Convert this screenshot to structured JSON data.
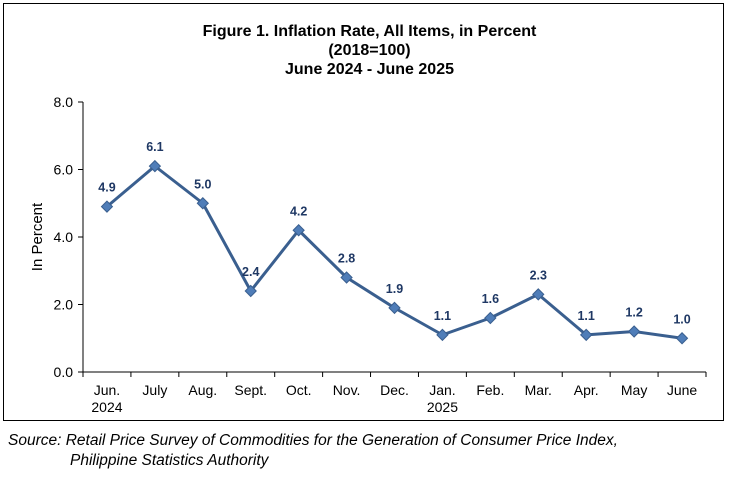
{
  "chart_data": {
    "type": "line",
    "title_lines": [
      "Figure 1. Inflation Rate, All Items, in Percent",
      "(2018=100)",
      "June 2024 - June 2025"
    ],
    "ylabel": "In Percent",
    "ylim": [
      0,
      8
    ],
    "yticks": [
      "0.0",
      "2.0",
      "4.0",
      "6.0",
      "8.0"
    ],
    "ytick_values": [
      0,
      2,
      4,
      6,
      8
    ],
    "categories": [
      [
        "Jun.",
        "2024"
      ],
      [
        "July"
      ],
      [
        "Aug."
      ],
      [
        "Sept."
      ],
      [
        "Oct."
      ],
      [
        "Nov."
      ],
      [
        "Dec."
      ],
      [
        "Jan.",
        "2025"
      ],
      [
        "Feb."
      ],
      [
        "Mar."
      ],
      [
        "Apr."
      ],
      [
        "May"
      ],
      [
        "June"
      ]
    ],
    "values": [
      4.9,
      6.1,
      5.0,
      2.4,
      4.2,
      2.8,
      1.9,
      1.1,
      1.6,
      2.3,
      1.1,
      1.2,
      1.0
    ],
    "data_labels": [
      "4.9",
      "6.1",
      "5.0",
      "2.4",
      "4.2",
      "2.8",
      "1.9",
      "1.1",
      "1.6",
      "2.3",
      "1.1",
      "1.2",
      "1.0"
    ],
    "grid": false,
    "legend": "none",
    "line_color": "#3A5F8F",
    "marker_color": "#4F7DB8",
    "label_color": "#1F3864"
  },
  "source": {
    "line1": "Source: Retail Price Survey of Commodities for the Generation of Consumer Price Index,",
    "line2": "Philippine Statistics Authority"
  }
}
